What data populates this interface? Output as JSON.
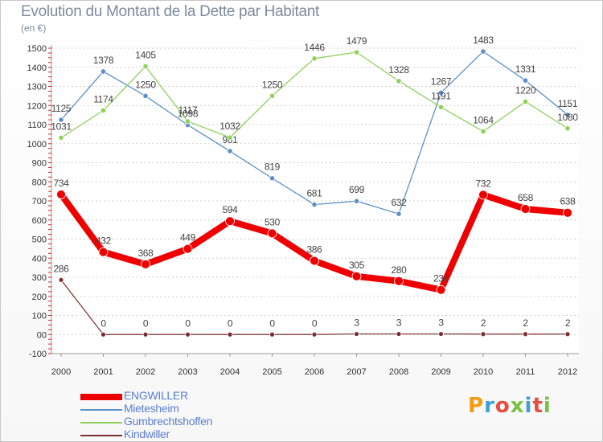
{
  "title": "Evolution du Montant de la Dette par Habitant",
  "unit_label": "(en €)",
  "brand": "Proxiti",
  "brand_colors": [
    "#f39c12",
    "#3aa0d8",
    "#e84c3d",
    "#7ac143",
    "#3aa0d8",
    "#e84c3d",
    "#7ac143"
  ],
  "chart_data": {
    "type": "line",
    "x": [
      "2000",
      "2001",
      "2002",
      "2003",
      "2004",
      "2005",
      "2006",
      "2007",
      "2008",
      "2009",
      "2010",
      "2011",
      "2012"
    ],
    "ylim": [
      -100,
      1500
    ],
    "yticks": [
      -100,
      0,
      50,
      100,
      150,
      200,
      250,
      300,
      350,
      400,
      450,
      500,
      550,
      600,
      650,
      700,
      750,
      800,
      850,
      900,
      950,
      1000,
      1050,
      1100,
      1150,
      1200,
      1250,
      1300,
      1350,
      1400,
      1450,
      1500
    ],
    "ytick_labels": [
      "-100",
      "00",
      "100",
      "200",
      "300",
      "400",
      "500",
      "600",
      "700",
      "800",
      "900",
      "1000",
      "1100",
      "1200",
      "1300",
      "1400",
      "1500"
    ],
    "ytick_values": [
      -100,
      0,
      100,
      200,
      300,
      400,
      500,
      600,
      700,
      800,
      900,
      1000,
      1100,
      1200,
      1300,
      1400,
      1500
    ],
    "grid": "horizontal",
    "legend_position": "bottom-left",
    "series": [
      {
        "name": "Mietesheim",
        "color": "#5b8fc8",
        "values": [
          1125,
          1378,
          1250,
          1098,
          961,
          819,
          681,
          699,
          632,
          1267,
          1483,
          1331,
          1151
        ],
        "labels": [
          "1125",
          "1378",
          "1250",
          "1098",
          "961",
          "819",
          "681",
          "699",
          "632",
          "1267",
          "1483",
          "1331",
          "1151"
        ]
      },
      {
        "name": "Gumbrechtshoffen",
        "color": "#8fd05a",
        "values": [
          1031,
          1174,
          1405,
          1117,
          1032,
          1250,
          1446,
          1479,
          1328,
          1191,
          1064,
          1220,
          1080
        ],
        "labels": [
          "1031",
          "1174",
          "1405",
          "1117",
          "1032",
          "1250",
          "1446",
          "1479",
          "1328",
          "1191",
          "1064",
          "1220",
          "1080"
        ]
      },
      {
        "name": "Kindwiller",
        "color": "#7b2e2e",
        "values": [
          286,
          0,
          0,
          0,
          0,
          0,
          0,
          3,
          3,
          3,
          2,
          2,
          2
        ],
        "labels": [
          "286",
          "0",
          "0",
          "0",
          "0",
          "0",
          "0",
          "3",
          "3",
          "3",
          "2",
          "2",
          "2"
        ]
      },
      {
        "name": "ENGWILLER",
        "color": "#ee0000",
        "values": [
          734,
          432,
          368,
          449,
          594,
          530,
          386,
          305,
          280,
          234,
          732,
          658,
          638
        ],
        "labels": [
          "734",
          "432",
          "368",
          "449",
          "594",
          "530",
          "386",
          "305",
          "280",
          "234",
          "732",
          "658",
          "638"
        ]
      }
    ],
    "legend_order": [
      "ENGWILLER",
      "Mietesheim",
      "Gumbrechtshoffen",
      "Kindwiller"
    ]
  }
}
